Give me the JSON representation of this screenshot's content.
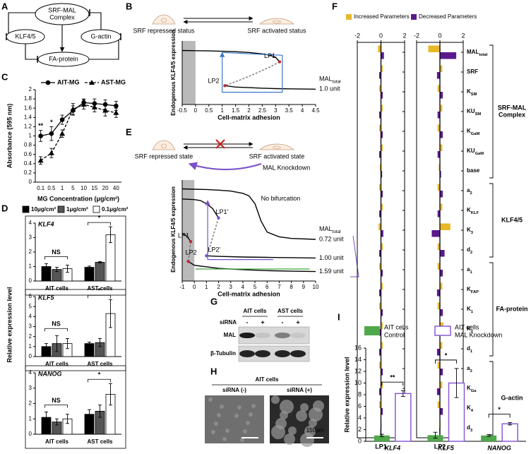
{
  "diagram": {
    "panel": "A",
    "nodes": [
      {
        "label_lines": [
          "SRF-MAL",
          "Complex"
        ]
      },
      {
        "label_lines": [
          "KLF4/5"
        ]
      },
      {
        "label_lines": [
          "G-actin"
        ]
      },
      {
        "label_lines": [
          "FA-protein"
        ]
      }
    ]
  },
  "blot": {
    "panel": "G",
    "groups": [
      "AIT cells",
      "AST cells"
    ],
    "row_label": "siRNA",
    "lanes": [
      "-",
      "+",
      "-",
      "+"
    ],
    "bands": [
      "MAL",
      "β-Tubulin"
    ]
  },
  "images": {
    "panel": "H",
    "title": "AIT cells",
    "captions": [
      "siRNA (-)",
      "siRNA (+)"
    ],
    "scale": "150μm"
  },
  "chart_data": [
    {
      "type": "curve",
      "panel": "B",
      "xlabel": "Cell-matrix adhesion",
      "ylabel": "Endogenous KLF4/5 expression",
      "xlim": [
        -0.5,
        4.5
      ],
      "xticks": [
        -0.5,
        0,
        0.5,
        1,
        1.5,
        2,
        2.5,
        3,
        3.5,
        4,
        4.5
      ],
      "ylim": [
        0,
        3.2
      ],
      "shade_xlim": [
        -0.5,
        0
      ],
      "states": [
        "SRF repressed status",
        "SRF activated status"
      ],
      "param_title": [
        "MAL",
        "total"
      ],
      "param_labels": [
        "1.0 unit"
      ],
      "point_labels": [
        {
          "text": "LP1",
          "x": 3.15,
          "y": 2.15,
          "color": "#c0282d"
        },
        {
          "text": "LP2",
          "x": 1.1,
          "y": 0.95,
          "color": "#c0282d"
        }
      ],
      "series": [
        {
          "color": "#000000",
          "dash": false,
          "x": [
            -0.5,
            0,
            0.5,
            1,
            1.5,
            2,
            2.5,
            2.8,
            3.0,
            3.15
          ],
          "values": [
            2.72,
            2.71,
            2.7,
            2.68,
            2.66,
            2.62,
            2.55,
            2.48,
            2.38,
            2.15
          ]
        },
        {
          "color": "#777777",
          "dash": true,
          "x": [
            3.15,
            2.8,
            2.4,
            2.0,
            1.6,
            1.3,
            1.1
          ],
          "values": [
            2.15,
            1.9,
            1.65,
            1.42,
            1.2,
            1.05,
            0.95
          ]
        },
        {
          "color": "#000000",
          "dash": false,
          "x": [
            1.1,
            1.5,
            2,
            2.5,
            3,
            3.5,
            4,
            4.5
          ],
          "values": [
            0.95,
            0.88,
            0.85,
            0.82,
            0.8,
            0.79,
            0.78,
            0.77
          ]
        },
        {
          "color": "#3a78c9",
          "dash": false,
          "x": [
            1.0,
            3.25,
            3.25,
            1.0,
            1.0
          ],
          "values": [
            2.62,
            2.48,
            0.62,
            0.62,
            2.62
          ]
        }
      ]
    },
    {
      "type": "line",
      "panel": "C",
      "categories": [
        "0.1",
        "0.5",
        "1",
        "5",
        "10",
        "15",
        "20",
        "40"
      ],
      "xlabel": "MG Concentration (μg/cm²)",
      "ylabel": "Absorbance (595 nm)",
      "ylim": [
        0,
        2
      ],
      "yticks": [
        0,
        0.2,
        0.4,
        0.6,
        0.8,
        1,
        1.2,
        1.4,
        1.6,
        1.8,
        2
      ],
      "series": [
        {
          "name": "AIT-MG",
          "color": "#000000",
          "marker": "circle",
          "dash": false,
          "values": [
            1.0,
            1.05,
            1.35,
            1.55,
            1.72,
            1.7,
            1.68,
            1.65
          ],
          "errors": [
            0.12,
            0.15,
            0.1,
            0.1,
            0.08,
            0.1,
            0.1,
            0.1
          ]
        },
        {
          "name": "AST-MG",
          "color": "#000000",
          "marker": "triangle",
          "dash": true,
          "values": [
            0.47,
            0.63,
            1.05,
            1.58,
            1.68,
            1.62,
            1.55,
            1.5
          ],
          "errors": [
            0.08,
            0.1,
            0.08,
            0.12,
            0.1,
            0.1,
            0.12,
            0.1
          ]
        }
      ],
      "significance": [
        "**",
        "*",
        null,
        null,
        null,
        null,
        null,
        null
      ]
    },
    {
      "type": "bar",
      "panel": "D",
      "ylabel": "Relative expression level",
      "categories": [
        "AIT cells",
        "AST cells"
      ],
      "series": [
        {
          "name": "10μg/cm²",
          "color": "#000000"
        },
        {
          "name": "1μg/cm²",
          "color": "#555555"
        },
        {
          "name": "0.1μg/cm²",
          "color": "#ffffff"
        }
      ],
      "facets": [
        {
          "title": "KLF4",
          "ylim": [
            0,
            4
          ],
          "yticks": [
            0,
            1,
            2,
            3,
            4
          ],
          "values": [
            [
              1.0,
              0.95
            ],
            [
              0.8,
              1.3
            ],
            [
              0.85,
              3.2
            ]
          ],
          "errors": [
            [
              0.2,
              0.08
            ],
            [
              0.15,
              0.05
            ],
            [
              0.25,
              0.55
            ]
          ],
          "comparisons": [
            "NS",
            "*"
          ]
        },
        {
          "title": "KLF5",
          "ylim": [
            0,
            6
          ],
          "yticks": [
            0,
            1,
            2,
            3,
            4,
            5,
            6
          ],
          "values": [
            [
              1.0,
              1.3
            ],
            [
              1.3,
              1.4
            ],
            [
              1.3,
              4.3
            ]
          ],
          "errors": [
            [
              0.3,
              0.15
            ],
            [
              0.8,
              0.4
            ],
            [
              0.5,
              1.4
            ]
          ],
          "comparisons": [
            "NS",
            "*"
          ]
        },
        {
          "title": "NANOG",
          "ylim": [
            0,
            4
          ],
          "yticks": [
            0,
            1,
            2,
            3,
            4
          ],
          "values": [
            [
              1.1,
              1.3
            ],
            [
              0.8,
              1.5
            ],
            [
              1.0,
              2.6
            ]
          ],
          "errors": [
            [
              0.35,
              0.3
            ],
            [
              0.2,
              0.4
            ],
            [
              0.3,
              0.7
            ]
          ],
          "comparisons": [
            "NS",
            "*"
          ]
        }
      ]
    },
    {
      "type": "curve",
      "panel": "E",
      "xlabel": "Cell-matrix adhesion",
      "ylabel": "Endogenous KLF4/5 expression",
      "xlim": [
        -1,
        10
      ],
      "xticks": [
        -1,
        0,
        1,
        2,
        3,
        4,
        5,
        6,
        7,
        8,
        9,
        10
      ],
      "ylim": [
        0,
        3.2
      ],
      "shade_xlim": [
        -1,
        0
      ],
      "states": [
        "SRF repressed state",
        "SRF activated state"
      ],
      "knockdown": "MAL Knockdown",
      "note": "No bifurcation",
      "param_title": [
        "MAL",
        "total"
      ],
      "param_labels": [
        "0.72 unit",
        "1.00 unit",
        "1.59 unit"
      ],
      "point_labels": [
        {
          "text": "LP1",
          "x": -0.3,
          "y": 1.25,
          "color": "#c0282d"
        },
        {
          "text": "LP2",
          "x": -0.5,
          "y": 0.62,
          "color": "#c0282d"
        },
        {
          "text": "LP1'",
          "x": 2.0,
          "y": 2.0,
          "color": "#7a4fc9"
        },
        {
          "text": "LP2'",
          "x": 1.0,
          "y": 0.8,
          "color": "#7a4fc9"
        }
      ],
      "series": [
        {
          "color": "#000000",
          "dash": false,
          "x": [
            -1,
            0,
            1,
            2,
            3,
            4,
            4.5,
            5,
            5.5,
            6,
            7,
            8,
            10
          ],
          "values": [
            2.92,
            2.91,
            2.9,
            2.88,
            2.85,
            2.78,
            2.7,
            2.45,
            1.9,
            1.55,
            1.4,
            1.35,
            1.32
          ]
        },
        {
          "color": "#000000",
          "dash": false,
          "x": [
            -1,
            0,
            0.5,
            1,
            1.5,
            2.0
          ],
          "values": [
            2.6,
            2.58,
            2.55,
            2.45,
            2.3,
            2.0
          ]
        },
        {
          "color": "#777777",
          "dash": true,
          "x": [
            2.0,
            1.6,
            1.3,
            1.0
          ],
          "values": [
            2.0,
            1.5,
            1.1,
            0.8
          ]
        },
        {
          "color": "#000000",
          "dash": false,
          "x": [
            1.0,
            2,
            4,
            6,
            8,
            10
          ],
          "values": [
            0.8,
            0.78,
            0.76,
            0.75,
            0.74,
            0.73
          ]
        },
        {
          "color": "#000000",
          "dash": false,
          "x": [
            -1,
            -0.6,
            -0.3
          ],
          "values": [
            1.5,
            1.42,
            1.25
          ]
        },
        {
          "color": "#777777",
          "dash": true,
          "x": [
            -0.3,
            -0.4,
            -0.5
          ],
          "values": [
            1.25,
            0.9,
            0.62
          ]
        },
        {
          "color": "#000000",
          "dash": false,
          "x": [
            -0.5,
            0,
            2,
            4,
            6,
            8,
            10
          ],
          "values": [
            0.62,
            0.5,
            0.4,
            0.36,
            0.33,
            0.31,
            0.3
          ]
        },
        {
          "color": "#7a4fc9",
          "dash": false,
          "x": [
            6.5,
            1.1,
            1.1
          ],
          "values": [
            0.68,
            0.68,
            2.55
          ]
        },
        {
          "color": "#3fa33a",
          "dash": false,
          "x": [
            9.5,
            0.1
          ],
          "values": [
            0.38,
            0.38
          ]
        }
      ]
    },
    {
      "type": "hbar",
      "panel": "F",
      "xlim": [
        -2,
        2
      ],
      "xticks": [
        -2,
        0,
        2
      ],
      "series": [
        {
          "name": "Increased Parameters",
          "color": "#e8b828"
        },
        {
          "name": "Decreased Parameters",
          "color": "#5b1a8c"
        }
      ],
      "groups": [
        {
          "label_lines": [
            "SRF-MAL",
            "Complex"
          ],
          "categories": [
            [
              "MAL",
              "total"
            ],
            [
              "SRF"
            ],
            [
              "K",
              "SM"
            ],
            [
              "KU",
              "SM"
            ],
            [
              "K",
              "GaM"
            ],
            [
              "KU",
              "GaM"
            ],
            [
              "base"
            ]
          ]
        },
        {
          "label_lines": [
            "KLF4/5"
          ],
          "categories": [
            [
              "a",
              "2"
            ],
            [
              "K",
              "KLF"
            ],
            [
              "K",
              "3"
            ],
            [
              "d",
              "2"
            ]
          ]
        },
        {
          "label_lines": [
            "FA-protein"
          ],
          "categories": [
            [
              "a",
              "1"
            ],
            [
              "K",
              "FAP"
            ],
            [
              "K",
              "1"
            ],
            [
              "K",
              "2"
            ],
            [
              "d",
              "1"
            ]
          ]
        },
        {
          "label_lines": [
            "G-actin"
          ],
          "categories": [
            [
              "a",
              "3"
            ],
            [
              "K",
              "Ga"
            ],
            [
              "K",
              "4"
            ],
            [
              "d",
              "3"
            ]
          ]
        }
      ],
      "facets": [
        {
          "title": "LP1",
          "values": [
            [
              -0.25,
              0.15,
              -0.15,
              0.15,
              -0.15,
              0.15,
              -0.1,
              -0.15,
              0.15,
              -0.2,
              0.15,
              -0.15,
              0.15,
              -0.15,
              0.15,
              0.15,
              -0.15,
              0.15,
              -0.15,
              0.05
            ],
            [
              0.25,
              -0.15,
              0.15,
              -0.15,
              0.15,
              -0.15,
              0.1,
              0.15,
              -0.15,
              0.2,
              -0.15,
              0.15,
              -0.15,
              0.15,
              -0.15,
              -0.15,
              0.15,
              -0.15,
              0.15,
              -0.05
            ]
          ]
        },
        {
          "title": "LP2",
          "values": [
            [
              -1.0,
              0.2,
              -0.2,
              0.2,
              -0.2,
              0.2,
              -0.1,
              -0.2,
              0.2,
              0.9,
              -0.2,
              -0.2,
              0.2,
              -0.2,
              0.3,
              0.2,
              -0.2,
              0.2,
              -0.2,
              0.05
            ],
            [
              1.4,
              -0.25,
              0.25,
              -0.2,
              0.25,
              -0.2,
              0.1,
              0.25,
              -0.2,
              -0.7,
              0.4,
              0.25,
              -0.25,
              0.25,
              -0.3,
              -0.25,
              0.25,
              -0.25,
              0.25,
              -0.05
            ]
          ]
        }
      ]
    },
    {
      "type": "bar",
      "panel": "I",
      "categories": [
        "KLF4",
        "KLF5",
        "NANOG"
      ],
      "ylabel": "Relative expression level",
      "ylim": [
        0,
        16
      ],
      "yticks": [
        0,
        2,
        4,
        6,
        8,
        10,
        12,
        14,
        16
      ],
      "series": [
        {
          "name_lines": [
            "AIT cells",
            "Control"
          ],
          "color": "#4fa84a",
          "fill": true,
          "values": [
            1.0,
            1.05,
            1.0
          ],
          "errors": [
            0.2,
            0.5,
            0.15
          ]
        },
        {
          "name_lines": [
            "AIT cells",
            "MAL Knockdown"
          ],
          "color": "#8a5cd6",
          "fill": false,
          "values": [
            8.2,
            10.0,
            3.0
          ],
          "errors": [
            0.5,
            2.5,
            0.2
          ]
        }
      ],
      "significance": [
        "**",
        "*",
        "*"
      ]
    }
  ]
}
